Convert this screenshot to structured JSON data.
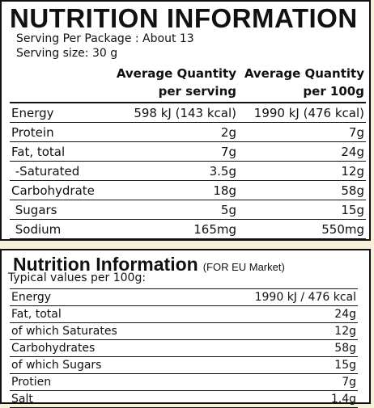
{
  "top": {
    "title": "NUTRITION INFORMATION",
    "serving_per_package": "Serving Per Package : About 13",
    "serving_size": "Serving size: 30 g",
    "table": {
      "header": [
        "Average Quantity\nper serving",
        "Average Quantity\nper 100g"
      ],
      "rows": [
        [
          "Energy",
          "598 kJ (143 kcal)",
          "1990 kJ (476 kcal)"
        ],
        [
          "Protein",
          "2g",
          "7g"
        ],
        [
          "Fat, total",
          "7g",
          "24g"
        ],
        [
          " -Saturated",
          "3.5g",
          "12g"
        ],
        [
          "Carbohydrate",
          "18g",
          "58g"
        ],
        [
          " Sugars",
          "5g",
          "15g"
        ],
        [
          " Sodium",
          "165mg",
          "550mg"
        ]
      ]
    }
  },
  "bottom": {
    "title": "Nutrition Information",
    "market": "(FOR EU Market)",
    "subtitle": "Typical values per 100g:",
    "table": {
      "rows": [
        [
          "Energy",
          "1990 kJ / 476 kcal"
        ],
        [
          "Fat, total",
          "24g"
        ],
        [
          "of which Saturates",
          "12g"
        ],
        [
          "Carbohydrates",
          "58g"
        ],
        [
          "of which Sugars",
          "15g"
        ],
        [
          "Protien",
          "7g"
        ],
        [
          "Salt",
          "1.4g"
        ]
      ]
    }
  }
}
